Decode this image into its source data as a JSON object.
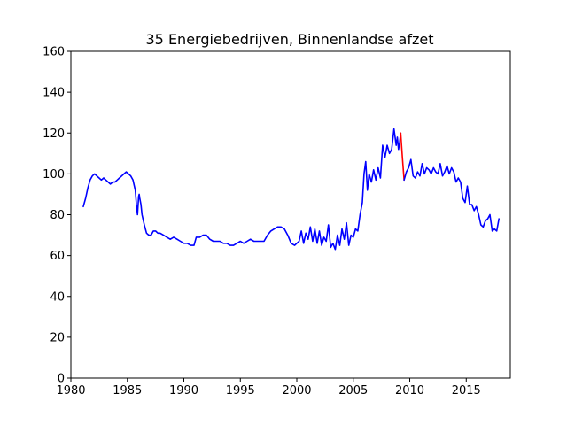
{
  "chart_data": {
    "type": "line",
    "title": "35 Energiebedrijven, Binnenlandse afzet",
    "xlabel": "",
    "ylabel": "",
    "xlim": [
      1980,
      2018.9
    ],
    "ylim": [
      0,
      160
    ],
    "x_ticks": [
      1980,
      1985,
      1990,
      1995,
      2000,
      2005,
      2010,
      2015
    ],
    "y_ticks": [
      0,
      20,
      40,
      60,
      80,
      100,
      120,
      140,
      160
    ],
    "grid": false,
    "legend": "none",
    "series": [
      {
        "color": "#0000ff",
        "x": [
          1981.1,
          1981.3,
          1981.5,
          1981.7,
          1981.9,
          1982.1,
          1982.3,
          1982.5,
          1982.7,
          1982.9,
          1983.1,
          1983.3,
          1983.5,
          1983.7,
          1983.9,
          1984.1,
          1984.3,
          1984.5,
          1984.7,
          1984.9,
          1985.1,
          1985.3,
          1985.5,
          1985.7,
          1985.8,
          1985.9,
          1986.0,
          1986.05,
          1986.1,
          1986.2,
          1986.3,
          1986.5,
          1986.7,
          1986.9,
          1987.1,
          1987.3,
          1987.5,
          1987.7,
          1987.9,
          1988.2,
          1988.5,
          1988.8,
          1989.1,
          1989.4,
          1989.7,
          1990.0,
          1990.3,
          1990.6,
          1990.9,
          1991.1,
          1991.4,
          1991.7,
          1992.0,
          1992.3,
          1992.6,
          1992.9,
          1993.2,
          1993.5,
          1993.8,
          1994.1,
          1994.4,
          1994.7,
          1995.0,
          1995.3,
          1995.6,
          1995.9,
          1996.2,
          1996.5,
          1996.8,
          1997.1,
          1997.4,
          1997.7,
          1998.0,
          1998.3,
          1998.6,
          1998.9,
          1999.2,
          1999.5,
          1999.8,
          2000.0,
          2000.2,
          2000.4,
          2000.6,
          2000.8,
          2001.0,
          2001.2,
          2001.4,
          2001.6,
          2001.8,
          2002.0,
          2002.2,
          2002.4,
          2002.6,
          2002.8,
          2003.0,
          2003.2,
          2003.4,
          2003.6,
          2003.8,
          2004.0,
          2004.2,
          2004.4,
          2004.6,
          2004.8,
          2005.0,
          2005.2,
          2005.4,
          2005.6,
          2005.8,
          2005.95,
          2006.1,
          2006.25,
          2006.4,
          2006.6,
          2006.8,
          2007.0,
          2007.2,
          2007.4,
          2007.6,
          2007.8,
          2008.0,
          2008.2,
          2008.4,
          2008.6,
          2008.8,
          2008.9,
          2009.0,
          2009.1,
          2009.2
        ],
        "values": [
          84,
          88,
          93,
          97,
          99,
          100,
          99,
          98,
          97,
          98,
          97,
          96,
          95,
          96,
          96,
          97,
          98,
          99,
          100,
          101,
          100,
          99,
          97,
          92,
          85,
          80,
          89,
          90,
          88,
          85,
          80,
          75,
          71,
          70,
          70,
          72,
          72,
          71,
          71,
          70,
          69,
          68,
          69,
          68,
          67,
          66,
          66,
          65,
          65,
          69,
          69,
          70,
          70,
          68,
          67,
          67,
          67,
          66,
          66,
          65,
          65,
          66,
          67,
          66,
          67,
          68,
          67,
          67,
          67,
          67,
          70,
          72,
          73,
          74,
          74,
          73,
          70,
          66,
          65,
          66,
          67,
          72,
          66,
          71,
          68,
          74,
          67,
          73,
          66,
          72,
          65,
          69,
          67,
          75,
          64,
          66,
          63,
          70,
          65,
          73,
          68,
          76,
          65,
          70,
          69,
          73,
          72,
          80,
          86,
          100,
          106,
          92,
          100,
          96,
          102,
          97,
          103,
          98,
          114,
          108,
          114,
          110,
          112,
          122,
          114,
          118,
          112,
          115,
          120
        ]
      },
      {
        "color": "#ff0000",
        "x": [
          2009.2,
          2009.35,
          2009.5
        ],
        "values": [
          120,
          108,
          97
        ]
      },
      {
        "color": "#0000ff",
        "x": [
          2009.5,
          2009.7,
          2009.9,
          2010.1,
          2010.3,
          2010.5,
          2010.7,
          2010.9,
          2011.1,
          2011.3,
          2011.5,
          2011.7,
          2011.9,
          2012.1,
          2012.3,
          2012.5,
          2012.7,
          2012.9,
          2013.1,
          2013.3,
          2013.5,
          2013.7,
          2013.9,
          2014.1,
          2014.3,
          2014.5,
          2014.7,
          2014.9,
          2015.1,
          2015.3,
          2015.5,
          2015.7,
          2015.9,
          2016.1,
          2016.3,
          2016.5,
          2016.7,
          2016.9,
          2017.1,
          2017.3,
          2017.5,
          2017.7,
          2017.9
        ],
        "values": [
          97,
          101,
          103,
          107,
          99,
          98,
          101,
          99,
          105,
          100,
          103,
          102,
          100,
          103,
          101,
          100,
          105,
          99,
          101,
          104,
          100,
          103,
          101,
          96,
          98,
          96,
          88,
          86,
          94,
          85,
          85,
          82,
          84,
          80,
          75,
          74,
          77,
          78,
          80,
          72,
          73,
          72,
          78
        ]
      }
    ]
  }
}
